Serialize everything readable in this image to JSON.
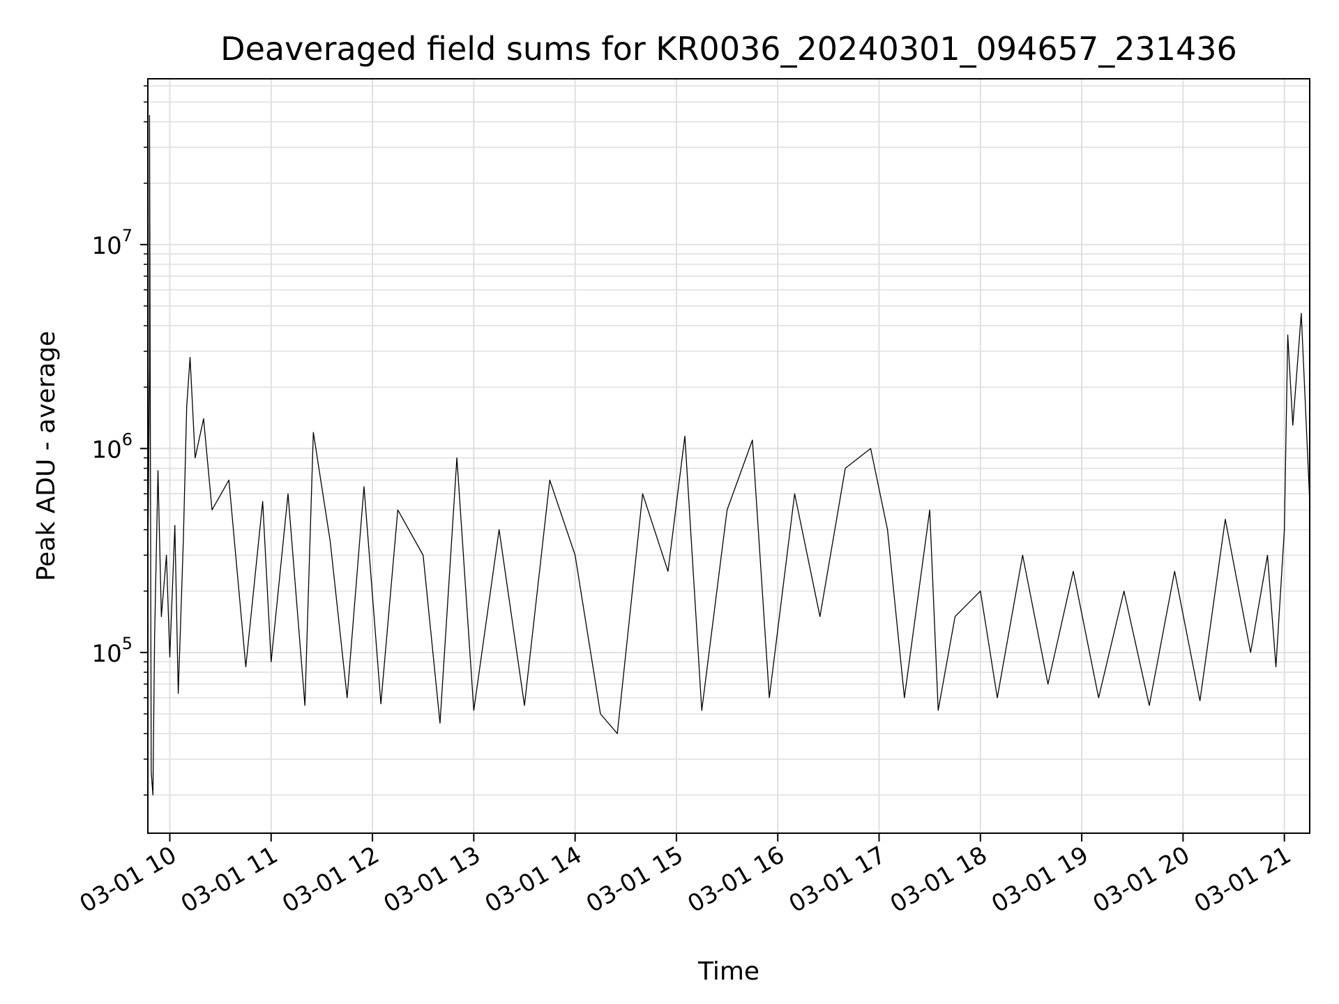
{
  "chart_data": {
    "type": "line",
    "title": "Deaveraged field sums for KR0036_20240301_094657_231436",
    "xlabel": "Time",
    "ylabel": "Peak ADU - average",
    "yscale": "log",
    "xlim": [
      "03-01 09:47",
      "03-01 21:15"
    ],
    "ylim": [
      13000,
      65000000
    ],
    "grid": true,
    "line_color": "#000000",
    "grid_color": "#e0e0e0",
    "x_tick_labels": [
      "03-01 10",
      "03-01 11",
      "03-01 12",
      "03-01 13",
      "03-01 14",
      "03-01 15",
      "03-01 16",
      "03-01 17",
      "03-01 18",
      "03-01 19",
      "03-01 20",
      "03-01 21"
    ],
    "y_tick_labels": [
      {
        "value": 100000,
        "base": "10",
        "exp": "5"
      },
      {
        "value": 1000000,
        "base": "10",
        "exp": "6"
      },
      {
        "value": 10000000,
        "base": "10",
        "exp": "7"
      }
    ],
    "series": [
      {
        "values": [
          [
            "03-01 09:47",
            280000
          ],
          [
            "03-01 09:48",
            2500000
          ],
          [
            "03-01 09:48",
            43000000
          ],
          [
            "03-01 09:49",
            26000
          ],
          [
            "03-01 09:50",
            20000
          ],
          [
            "03-01 09:51",
            120000
          ],
          [
            "03-01 09:53",
            780000
          ],
          [
            "03-01 09:55",
            150000
          ],
          [
            "03-01 09:58",
            300000
          ],
          [
            "03-01 10:00",
            95000
          ],
          [
            "03-01 10:03",
            420000
          ],
          [
            "03-01 10:05",
            63000
          ],
          [
            "03-01 10:08",
            350000
          ],
          [
            "03-01 10:10",
            1600000
          ],
          [
            "03-01 10:12",
            2800000
          ],
          [
            "03-01 10:15",
            900000
          ],
          [
            "03-01 10:20",
            1400000
          ],
          [
            "03-01 10:25",
            500000
          ],
          [
            "03-01 10:35",
            700000
          ],
          [
            "03-01 10:45",
            85000
          ],
          [
            "03-01 10:55",
            550000
          ],
          [
            "03-01 11:00",
            90000
          ],
          [
            "03-01 11:10",
            600000
          ],
          [
            "03-01 11:20",
            55000
          ],
          [
            "03-01 11:25",
            1200000
          ],
          [
            "03-01 11:35",
            350000
          ],
          [
            "03-01 11:45",
            60000
          ],
          [
            "03-01 11:55",
            650000
          ],
          [
            "03-01 12:05",
            56000
          ],
          [
            "03-01 12:15",
            500000
          ],
          [
            "03-01 12:30",
            300000
          ],
          [
            "03-01 12:40",
            45000
          ],
          [
            "03-01 12:50",
            900000
          ],
          [
            "03-01 13:00",
            52000
          ],
          [
            "03-01 13:15",
            400000
          ],
          [
            "03-01 13:30",
            55000
          ],
          [
            "03-01 13:45",
            700000
          ],
          [
            "03-01 14:00",
            300000
          ],
          [
            "03-01 14:15",
            50000
          ],
          [
            "03-01 14:25",
            40000
          ],
          [
            "03-01 14:40",
            600000
          ],
          [
            "03-01 14:55",
            250000
          ],
          [
            "03-01 15:05",
            1150000
          ],
          [
            "03-01 15:15",
            52000
          ],
          [
            "03-01 15:30",
            500000
          ],
          [
            "03-01 15:45",
            1100000
          ],
          [
            "03-01 15:55",
            60000
          ],
          [
            "03-01 16:10",
            600000
          ],
          [
            "03-01 16:25",
            150000
          ],
          [
            "03-01 16:40",
            800000
          ],
          [
            "03-01 16:55",
            1000000
          ],
          [
            "03-01 17:05",
            400000
          ],
          [
            "03-01 17:15",
            60000
          ],
          [
            "03-01 17:30",
            500000
          ],
          [
            "03-01 17:35",
            52000
          ],
          [
            "03-01 17:45",
            150000
          ],
          [
            "03-01 18:00",
            200000
          ],
          [
            "03-01 18:10",
            60000
          ],
          [
            "03-01 18:25",
            300000
          ],
          [
            "03-01 18:40",
            70000
          ],
          [
            "03-01 18:55",
            250000
          ],
          [
            "03-01 19:10",
            60000
          ],
          [
            "03-01 19:25",
            200000
          ],
          [
            "03-01 19:40",
            55000
          ],
          [
            "03-01 19:55",
            250000
          ],
          [
            "03-01 20:10",
            58000
          ],
          [
            "03-01 20:25",
            450000
          ],
          [
            "03-01 20:40",
            100000
          ],
          [
            "03-01 20:50",
            300000
          ],
          [
            "03-01 20:55",
            85000
          ],
          [
            "03-01 21:00",
            400000
          ],
          [
            "03-01 21:02",
            3600000
          ],
          [
            "03-01 21:05",
            1300000
          ],
          [
            "03-01 21:10",
            4600000
          ],
          [
            "03-01 21:15",
            550000
          ]
        ]
      }
    ]
  }
}
